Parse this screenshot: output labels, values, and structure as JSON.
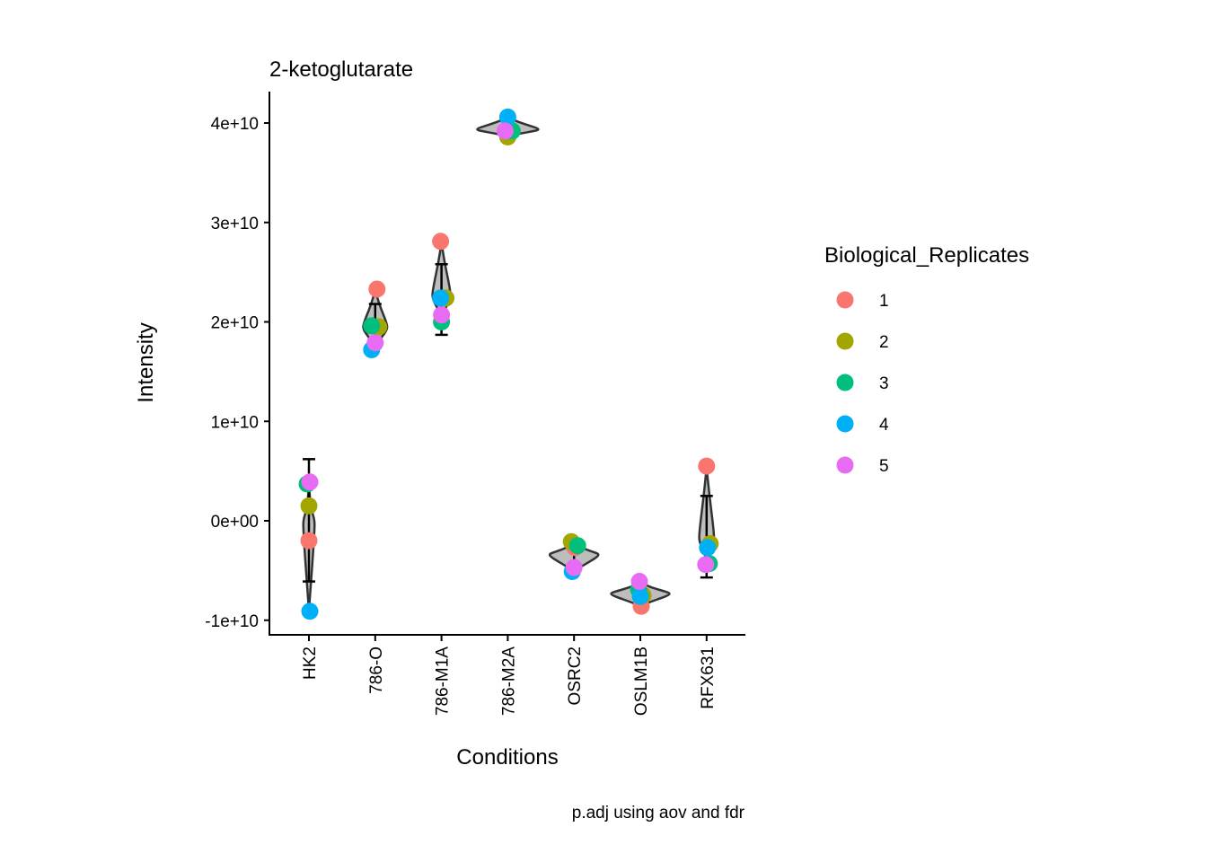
{
  "chart_data": {
    "type": "violin",
    "title": "2-ketoglutarate",
    "xlabel": "Conditions",
    "ylabel": "Intensity",
    "caption": "p.adj using  aov and fdr",
    "categories": [
      "HK2",
      "786-O",
      "786-M1A",
      "786-M2A",
      "OSRC2",
      "OSLM1B",
      "RFX631"
    ],
    "ylim": [
      -11500000000.0,
      43000000000.0
    ],
    "yticks": [
      -10000000000.0,
      0,
      10000000000.0,
      20000000000.0,
      30000000000.0,
      40000000000.0
    ],
    "ytick_labels": [
      "-1e+10",
      "0e+00",
      "1e+10",
      "2e+10",
      "3e+10",
      "4e+10"
    ],
    "grid": false,
    "legend": {
      "title": "Biological_Replicates",
      "position": "right",
      "entries": [
        {
          "label": "1",
          "color": "#F8766D"
        },
        {
          "label": "2",
          "color": "#A3A500"
        },
        {
          "label": "3",
          "color": "#00BF7D"
        },
        {
          "label": "4",
          "color": "#00B0F6"
        },
        {
          "label": "5",
          "color": "#E76BF3"
        }
      ]
    },
    "series": [
      {
        "name": "1",
        "values": [
          -2000000000.0,
          23300000000.0,
          28100000000.0,
          39200000000.0,
          -2700000000.0,
          -8600000000.0,
          5500000000.0
        ]
      },
      {
        "name": "2",
        "values": [
          1500000000.0,
          19500000000.0,
          22400000000.0,
          38600000000.0,
          -2100000000.0,
          -7500000000.0,
          -2300000000.0
        ]
      },
      {
        "name": "3",
        "values": [
          3700000000.0,
          19600000000.0,
          20000000000.0,
          39200000000.0,
          -2500000000.0,
          -6900000000.0,
          -4300000000.0
        ]
      },
      {
        "name": "4",
        "values": [
          -9100000000.0,
          17200000000.0,
          22400000000.0,
          40600000000.0,
          -5100000000.0,
          -7600000000.0,
          -2700000000.0
        ]
      },
      {
        "name": "5",
        "values": [
          3900000000.0,
          17900000000.0,
          20700000000.0,
          39200000000.0,
          -4700000000.0,
          -6100000000.0,
          -4400000000.0
        ]
      }
    ],
    "error_bars": [
      {
        "category": "HK2",
        "low": -6100000000.0,
        "high": 6200000000.0
      },
      {
        "category": "786-O",
        "low": 17400000000.0,
        "high": 21800000000.0
      },
      {
        "category": "786-M1A",
        "low": 18700000000.0,
        "high": 25800000000.0
      },
      {
        "category": "786-M2A",
        "low": 38700000000.0,
        "high": 40500000000.0
      },
      {
        "category": "OSRC2",
        "low": -4700000000.0,
        "high": -2200000000.0
      },
      {
        "category": "OSLM1B",
        "low": -8000000000.0,
        "high": -6400000000.0
      },
      {
        "category": "RFX631",
        "low": -5700000000.0,
        "high": 2500000000.0
      }
    ]
  }
}
